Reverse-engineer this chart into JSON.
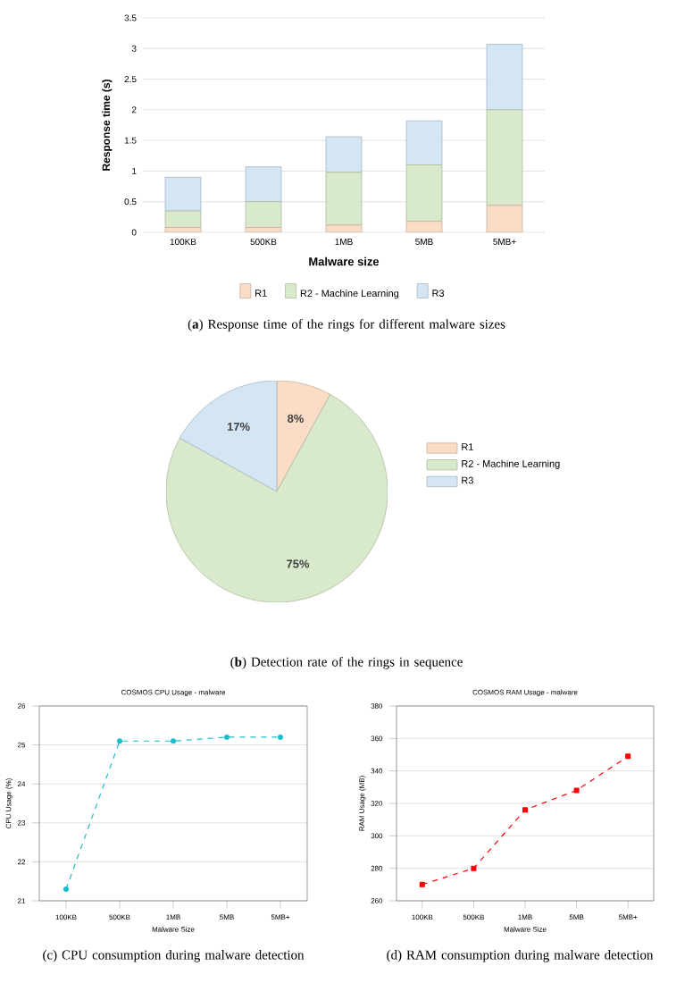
{
  "chart_data": [
    {
      "type": "bar",
      "stacked": true,
      "xlabel": "Malware size",
      "ylabel": "Response time (s)",
      "categories": [
        "100KB",
        "500KB",
        "1MB",
        "5MB",
        "5MB+"
      ],
      "series": [
        {
          "name": "R1",
          "color": "#fadcc7",
          "values": [
            0.08,
            0.08,
            0.12,
            0.18,
            0.44
          ]
        },
        {
          "name": "R2 - Machine Learning",
          "color": "#d8eacb",
          "values": [
            0.27,
            0.42,
            0.86,
            0.92,
            1.56
          ]
        },
        {
          "name": "R3",
          "color": "#d4e5f4",
          "values": [
            0.55,
            0.57,
            0.58,
            0.72,
            1.07
          ]
        }
      ],
      "ylim": [
        0,
        3.5
      ],
      "yticks": [
        0,
        0.5,
        1,
        1.5,
        2,
        2.5,
        3,
        3.5
      ],
      "grid": "y",
      "legend": "bottom",
      "annotations": [
        "(**a**) Response time of the rings for different malware sizes"
      ]
    },
    {
      "type": "pie",
      "categories": [
        "R1",
        "R2 - Machine Learning",
        "R3"
      ],
      "values": [
        8,
        75,
        17
      ],
      "value_labels": [
        "8%",
        "75%",
        "17%"
      ],
      "colors": [
        "#fadcc7",
        "#d8eacb",
        "#d4e5f4"
      ],
      "legend": "right",
      "annotations": [
        "(**b**) Detection rate of the rings in sequence"
      ]
    },
    {
      "type": "line",
      "title": "COSMOS CPU Usage - malware",
      "xlabel": "Malware Size",
      "ylabel": "CPU Usage (%)",
      "categories": [
        "100KB",
        "500KB",
        "1MB",
        "5MB",
        "5MB+"
      ],
      "series": [
        {
          "color": "#17becf",
          "values": [
            21.3,
            25.1,
            25.1,
            25.2,
            25.2
          ]
        }
      ],
      "ylim": [
        21,
        26
      ],
      "yticks": [
        21,
        22,
        23,
        24,
        25,
        26
      ],
      "grid": "y",
      "marker": "circle",
      "line_style": "dashed",
      "annotations": [
        "(c) CPU consumption during malware detection"
      ]
    },
    {
      "type": "line",
      "title": "COSMOS RAM Usage - malware",
      "xlabel": "Malware Size",
      "ylabel": "RAM Usage (MB)",
      "categories": [
        "100KB",
        "500KB",
        "1MB",
        "5MB",
        "5MB+"
      ],
      "series": [
        {
          "color": "#ff0000",
          "values": [
            270,
            280,
            316,
            328,
            349
          ]
        }
      ],
      "ylim": [
        260,
        380
      ],
      "yticks": [
        260,
        280,
        300,
        320,
        340,
        360,
        380
      ],
      "grid": "y",
      "marker": "square",
      "line_style": "dashed",
      "annotations": [
        "(d) RAM consumption during malware detection"
      ]
    }
  ]
}
